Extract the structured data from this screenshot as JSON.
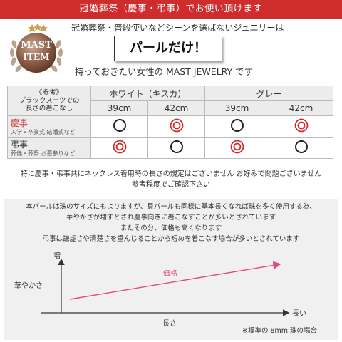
{
  "banner": {
    "text": "冠婚葬祭（慶事・弔事）でお使い頂けます"
  },
  "badge": {
    "line1": "MAST",
    "line2": "ITEM"
  },
  "header": {
    "tagline": "冠婚葬祭・普段使いなどシーンを選ばないジュエリーは",
    "pearl": "パールだけ！",
    "subline": "持っておきたい女性の MAST JEWELRY です"
  },
  "table": {
    "ref_lines": [
      "《参考》",
      "ブラックスーツでの",
      "長さの着こなし"
    ],
    "groups": [
      "ホワイト（キスカ）",
      "グレー"
    ],
    "lengths": [
      "39cm",
      "42cm",
      "39cm",
      "42cm"
    ],
    "rows": [
      {
        "title": "慶事",
        "sub": "入学・卒業式 結婚式など",
        "marks": [
          "single",
          "double",
          "single",
          "double"
        ]
      },
      {
        "title": "弔事",
        "sub": "葬儀・葬祭 お墓参りなど",
        "marks": [
          "double",
          "single",
          "double",
          "single"
        ]
      }
    ]
  },
  "notes": {
    "line1": "特に慶事・弔事共にネックレス着用時の長さの規定はございません  お好みで問題ございません",
    "line2": "参考程度でご確認下さい"
  },
  "info": {
    "lines": [
      "本パールは珠のサイズにもよりますが、貝パールも同様に基本長くなれば珠を多く使用する為、",
      "華やかさが増すとされ慶事向きに着こなすことが多いとされています",
      "またその分、価格も高くなります",
      "弔事は謙虚さや清楚さを重んじることから短めを着こなす場合が多いとされています"
    ]
  },
  "graph": {
    "y_axis_label": "増",
    "y_label": "華やかさ",
    "x_axis_label": "長い",
    "x_label": "長さ",
    "line_label": "価格",
    "footnote": "※標準の 8mm 珠の場合"
  },
  "colors": {
    "accent": "#cf2d2d",
    "ring": "#222222"
  }
}
